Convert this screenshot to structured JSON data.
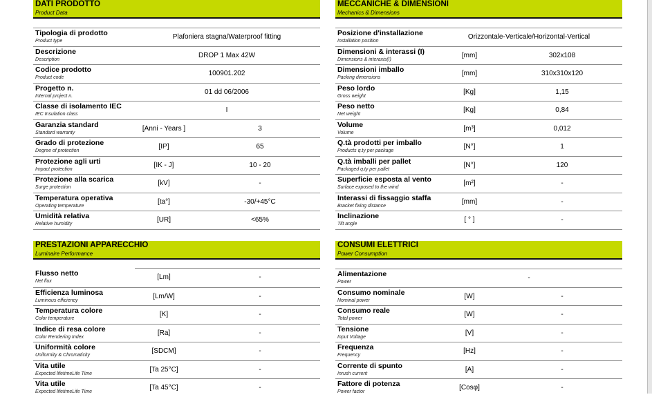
{
  "sections": [
    {
      "id": "dati-prodotto",
      "title": "DATI PRODOTTO",
      "subtitle": "Product Data",
      "rows": [
        {
          "label": "Tipologia di prodotto",
          "sublabel": "Product type",
          "unit": "",
          "value": "Plafoniera stagna/Waterproof fitting"
        },
        {
          "label": "Descrizione",
          "sublabel": "Description",
          "unit": "",
          "value": "DROP 1 Max 42W"
        },
        {
          "label": "Codice prodotto",
          "sublabel": "Product code",
          "unit": "",
          "value": "100901.202"
        },
        {
          "label": "Progetto n.",
          "sublabel": "Internal project n.",
          "unit": "",
          "value": "01 dd 06/2006"
        },
        {
          "label": "Classe di isolamento IEC",
          "sublabel": "IEC Insulation class",
          "unit": "",
          "value": "I"
        },
        {
          "label": "Garanzia standard",
          "sublabel": "Standard warranty",
          "unit": "[Anni - Years ]",
          "value": "3"
        },
        {
          "label": "Grado di protezione",
          "sublabel": "Degree of protection",
          "unit": "[IP]",
          "value": "65"
        },
        {
          "label": "Protezione agli urti",
          "sublabel": "Impact protection",
          "unit": "[IK - J]",
          "value": "10 - 20"
        },
        {
          "label": "Protezione alla scarica",
          "sublabel": "Surge protection",
          "unit": "[kV]",
          "value": "-"
        },
        {
          "label": "Temperatura operativa",
          "sublabel": "Operating temperature",
          "unit": "[ta°]",
          "value": "-30/+45°C"
        },
        {
          "label": "Umidità relativa",
          "sublabel": "Relative humidity",
          "unit": "[UR]",
          "value": "<65%"
        }
      ]
    },
    {
      "id": "meccaniche",
      "title": "MECCANICHE & DIMENSIONI",
      "subtitle": "Mechanics & Dimensions",
      "rows": [
        {
          "label": "Posizione d'installazione",
          "sublabel": "Installation position",
          "unit": "",
          "value": "Orizzontale-Verticale/Horizontal-Vertical"
        },
        {
          "label": "Dimensioni & interassi (I)",
          "sublabel": "Dimensions & interaxis(I)",
          "unit": "[mm]",
          "value": "302x108"
        },
        {
          "label": "Dimensioni imballo",
          "sublabel": "Packing dimensions",
          "unit": "[mm]",
          "value": "310x310x120"
        },
        {
          "label": "Peso lordo",
          "sublabel": "Gross weight",
          "unit": "[Kg]",
          "value": "1,15"
        },
        {
          "label": "Peso netto",
          "sublabel": "Net weight",
          "unit": "[Kg]",
          "value": "0,84"
        },
        {
          "label": "Volume",
          "sublabel": "Volume",
          "unit": "[m³]",
          "value": "0,012"
        },
        {
          "label": "Q.tà prodotti per imballo",
          "sublabel": "Products q.ty per package",
          "unit": "[N°]",
          "value": "1"
        },
        {
          "label": "Q.tà imballi per pallet",
          "sublabel": "Packaged q.ty per pallet",
          "unit": "[N°]",
          "value": "120"
        },
        {
          "label": "Superficie esposta al vento",
          "sublabel": "Surface exposed to the wind",
          "unit": "[m²]",
          "value": "-"
        },
        {
          "label": "Interassi di fissaggio staffa",
          "sublabel": "Bracket fixing distance",
          "unit": "[mm]",
          "value": "-"
        },
        {
          "label": "Inclinazione",
          "sublabel": "Tilt angle",
          "unit": "[ ° ]",
          "value": "-"
        }
      ]
    },
    {
      "id": "prestazioni",
      "title": "PRESTAZIONI APPARECCHIO",
      "subtitle": "Luminaire Performance",
      "rows": [
        {
          "label": "Flusso netto",
          "sublabel": "Net flux",
          "unit": "[Lm]",
          "value": "-"
        },
        {
          "label": "Efficienza luminosa",
          "sublabel": "Luminous efficiency",
          "unit": "[Lm/W]",
          "value": "-"
        },
        {
          "label": "Temperatura colore",
          "sublabel": "Color temperature",
          "unit": "[K]",
          "value": "-"
        },
        {
          "label": "Indice di resa colore",
          "sublabel": "Color Rendering Index",
          "unit": "[Ra]",
          "value": "-"
        },
        {
          "label": "Uniformità colore",
          "sublabel": "Uniformity & Chromaticity",
          "unit": "[SDCM]",
          "value": "-"
        },
        {
          "label": "Vita utile",
          "sublabel": "Expected lifetimeLife Time",
          "unit": "[Ta 25°C]",
          "value": "-"
        },
        {
          "label": "Vita utile",
          "sublabel": "Expected lifetimeLife Time",
          "unit": "[Ta 45°C]",
          "value": "-"
        }
      ]
    },
    {
      "id": "consumi",
      "title": "CONSUMI ELETTRICI",
      "subtitle": "Power Consumption",
      "rows": [
        {
          "label": "Alimentazione",
          "sublabel": "Power",
          "unit": "",
          "value": "-"
        },
        {
          "label": "Consumo nominale",
          "sublabel": "Nominal power",
          "unit": "[W]",
          "value": "-"
        },
        {
          "label": "Consumo reale",
          "sublabel": "Total power",
          "unit": "[W]",
          "value": "-"
        },
        {
          "label": "Tensione",
          "sublabel": "Input Voltage",
          "unit": "[V]",
          "value": "-"
        },
        {
          "label": "Frequenza",
          "sublabel": "Frequency",
          "unit": "[Hz]",
          "value": "-"
        },
        {
          "label": "Corrente di spunto",
          "sublabel": "Inrush current",
          "unit": "[A]",
          "value": "-"
        },
        {
          "label": "Fattore di potenza",
          "sublabel": "Power factor",
          "unit": "[Cosφ]",
          "value": "-"
        }
      ]
    }
  ],
  "colors": {
    "header_band": "#c5d900",
    "rule": "#8a8a8a"
  }
}
